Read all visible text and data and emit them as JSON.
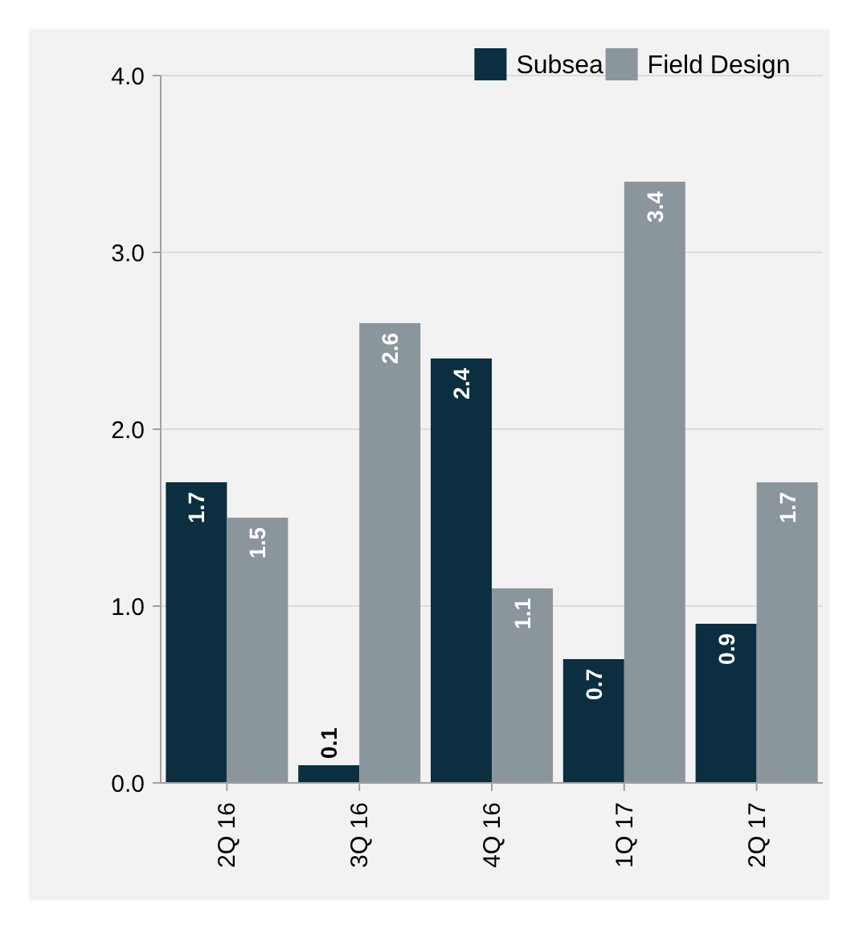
{
  "chart_data": {
    "type": "bar",
    "categories": [
      "2Q 16",
      "3Q 16",
      "4Q 16",
      "1Q 17",
      "2Q 17"
    ],
    "series": [
      {
        "name": "Subsea",
        "color": "#0b2e41",
        "values": [
          1.7,
          0.1,
          2.4,
          0.7,
          0.9
        ]
      },
      {
        "name": "Field Design",
        "color": "#8b959c",
        "values": [
          1.5,
          2.6,
          1.1,
          3.4,
          1.7
        ]
      }
    ],
    "ylim": [
      0,
      4
    ],
    "yticks": [
      {
        "value": 0,
        "label": "0.0"
      },
      {
        "value": 1,
        "label": "1.0"
      },
      {
        "value": 2,
        "label": "2.0"
      },
      {
        "value": 3,
        "label": "3.0"
      },
      {
        "value": 4,
        "label": "4.0"
      }
    ],
    "grid": "y",
    "legend": "top right",
    "data_labels": true
  }
}
